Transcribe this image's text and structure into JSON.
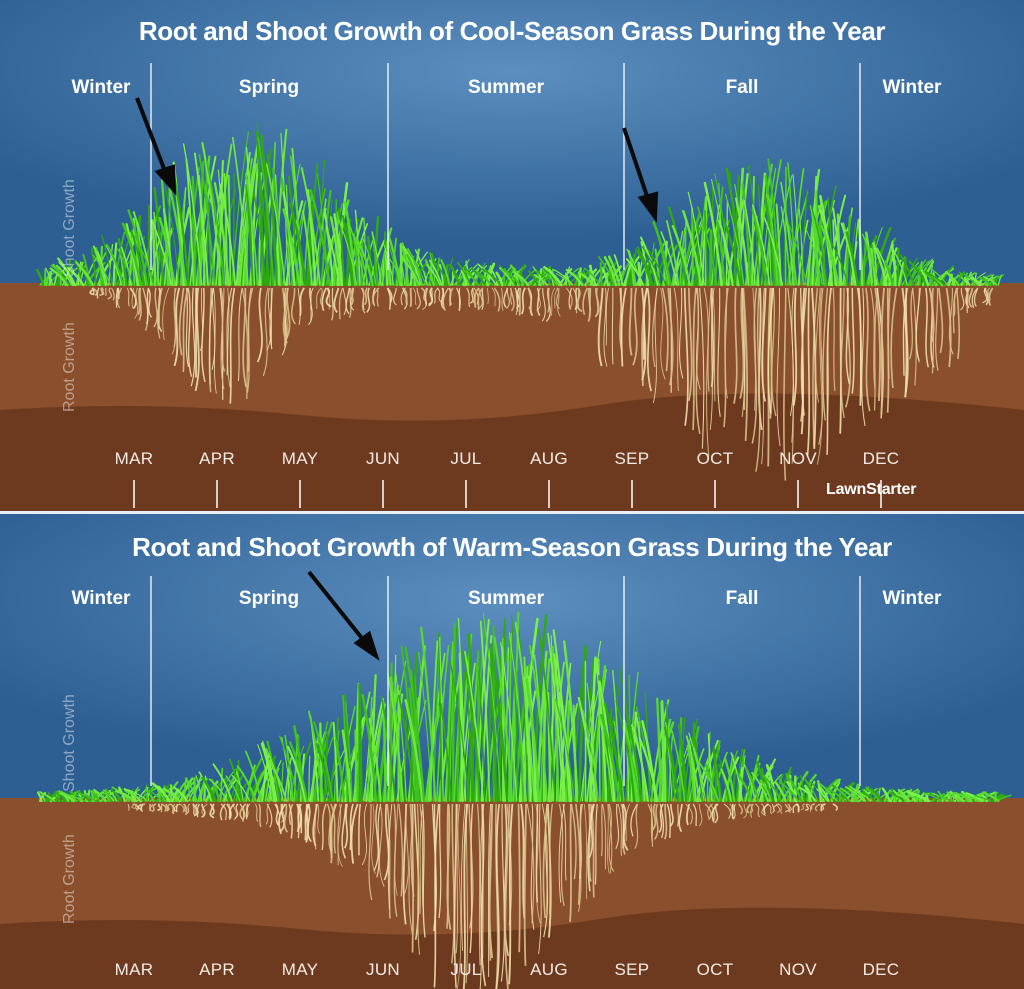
{
  "colors": {
    "sky": "#2f6296",
    "soil": "#8a4f2c",
    "soil_deep": "#6e3a1f",
    "grass": "#4fd82a",
    "roots": "#ecd9a6"
  },
  "cool_panel": {
    "title": "Root and Shoot Growth of Cool-Season Grass During the Year",
    "seasons": [
      "Winter",
      "Spring",
      "Summer",
      "Fall",
      "Winter"
    ],
    "months": [
      "MAR",
      "APR",
      "MAY",
      "JUN",
      "JUL",
      "AUG",
      "SEP",
      "OCT",
      "NOV",
      "DEC"
    ],
    "shoot_label": "Shoot Growth",
    "root_label": "Root Growth",
    "brand": "LawnStarter"
  },
  "warm_panel": {
    "title": "Root and Shoot Growth of Warm-Season Grass During the Year",
    "seasons": [
      "Winter",
      "Spring",
      "Summer",
      "Fall",
      "Winter"
    ],
    "months": [
      "MAR",
      "APR",
      "MAY",
      "JUN",
      "JUL",
      "AUG",
      "SEP",
      "OCT",
      "NOV",
      "DEC"
    ],
    "shoot_label": "Shoot Growth",
    "root_label": "Root Growth"
  }
}
